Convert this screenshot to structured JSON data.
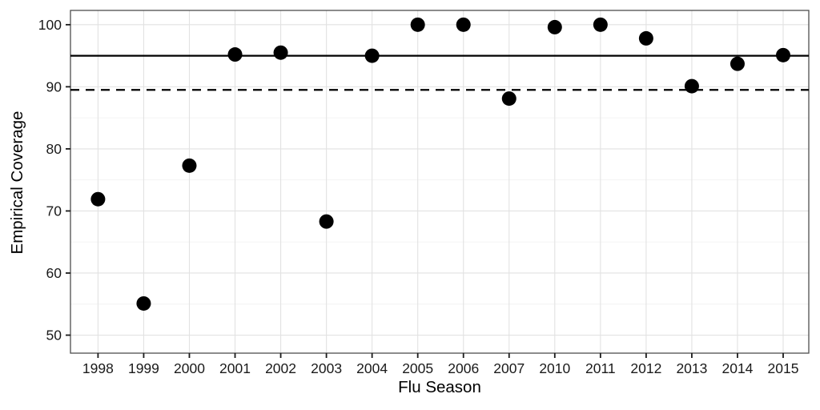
{
  "chart_data": {
    "type": "scatter",
    "title": "",
    "xlabel": "Flu Season",
    "ylabel": "Empirical Coverage",
    "categories": [
      "1998",
      "1999",
      "2000",
      "2001",
      "2002",
      "2003",
      "2004",
      "2005",
      "2006",
      "2007",
      "2010",
      "2011",
      "2012",
      "2013",
      "2014",
      "2015"
    ],
    "values": [
      71.9,
      55.1,
      77.3,
      95.2,
      95.5,
      68.3,
      95.0,
      100,
      100,
      88.1,
      99.6,
      100,
      97.8,
      90.1,
      93.7,
      95.1
    ],
    "yticks": [
      50,
      60,
      70,
      80,
      90,
      100
    ],
    "yticks_minor": [
      55,
      65,
      75,
      85,
      95
    ],
    "ylim": [
      47.1,
      102.3
    ],
    "reference_lines": [
      {
        "name": "nominal-95-line",
        "value": 95,
        "style": "solid"
      },
      {
        "name": "average-coverage-line",
        "value": 89.5,
        "style": "dashed"
      }
    ],
    "grid": true,
    "legend": false,
    "style": {
      "point_color": "#000000",
      "line_color": "#000000",
      "grid_major_color": "#e2e2e2",
      "grid_minor_color": "#f2f2f2",
      "panel_border_color": "#4d4d4d",
      "tick_color": "#1a1a1a",
      "text_color": "#1a1a1a",
      "background": "#ffffff"
    }
  }
}
